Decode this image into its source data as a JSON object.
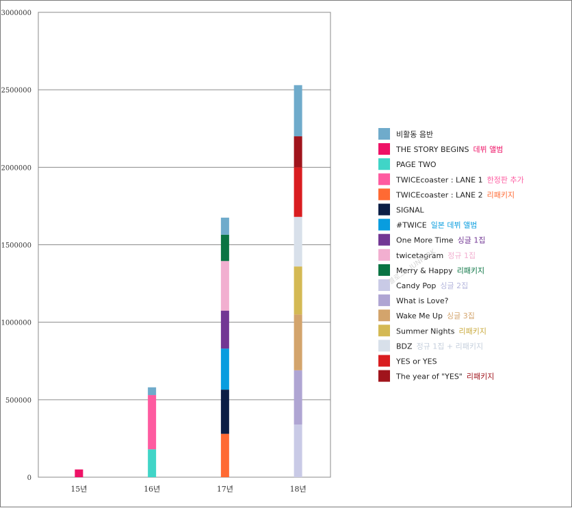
{
  "chart_data": {
    "type": "bar",
    "stacked": true,
    "categories": [
      "15년",
      "16년",
      "17년",
      "18년"
    ],
    "ylim": [
      0,
      3000000
    ],
    "yticks": [
      0,
      500000,
      1000000,
      1500000,
      2000000,
      2500000,
      3000000
    ],
    "grid": true,
    "legend_position": "right",
    "title": "",
    "xlabel": "",
    "ylabel": "",
    "series": [
      {
        "name": "THE STORY BEGINS",
        "note": "데뷔 앨범",
        "color": "#ee1266",
        "values": [
          50000,
          0,
          0,
          0
        ]
      },
      {
        "name": "PAGE TWO",
        "note": "",
        "color": "#40d5c7",
        "values": [
          0,
          180000,
          0,
          0
        ]
      },
      {
        "name": "TWICEcoaster : LANE 1",
        "note": "한정판 추가",
        "color": "#fe5ba0",
        "values": [
          0,
          350000,
          0,
          0
        ]
      },
      {
        "name": "TWICEcoaster : LANE 2",
        "note": "리패키지",
        "color": "#ff6a33",
        "values": [
          0,
          0,
          280000,
          0
        ]
      },
      {
        "name": "SIGNAL",
        "note": "",
        "color": "#0c1e45",
        "values": [
          0,
          0,
          285000,
          0
        ]
      },
      {
        "name": "#TWICE",
        "note": "일본 데뷔 앨범",
        "color": "#089ddf",
        "values": [
          0,
          0,
          265000,
          0
        ]
      },
      {
        "name": "One More Time",
        "note": "싱글 1집",
        "color": "#723794",
        "values": [
          0,
          0,
          245000,
          0
        ]
      },
      {
        "name": "twicetagram",
        "note": "정규 1집",
        "color": "#f2afd0",
        "values": [
          0,
          0,
          320000,
          0
        ]
      },
      {
        "name": "Merry & Happy",
        "note": "리패키지",
        "color": "#0a7443",
        "values": [
          0,
          0,
          170000,
          0
        ]
      },
      {
        "name": "Candy Pop",
        "note": "싱글 2집",
        "color": "#c9cae6",
        "values": [
          0,
          0,
          0,
          340000
        ]
      },
      {
        "name": "What is Love?",
        "note": "",
        "color": "#afa5d3",
        "values": [
          0,
          0,
          0,
          350000
        ]
      },
      {
        "name": "Wake Me Up",
        "note": "싱글 3집",
        "color": "#d3a46c",
        "values": [
          0,
          0,
          0,
          360000
        ]
      },
      {
        "name": "Summer Nights",
        "note": "리패키지",
        "color": "#d4b954",
        "values": [
          0,
          0,
          0,
          310000
        ]
      },
      {
        "name": "BDZ",
        "note": "정규 1집 + 리패키지",
        "color": "#d8e0ea",
        "values": [
          0,
          0,
          0,
          320000
        ]
      },
      {
        "name": "YES or YES",
        "note": "",
        "color": "#d91d20",
        "values": [
          0,
          0,
          0,
          320000
        ]
      },
      {
        "name": "The year of \"YES\"",
        "note": "리패키지",
        "color": "#a0141c",
        "values": [
          0,
          0,
          0,
          200000
        ]
      },
      {
        "name": "비활동 음반",
        "note": "",
        "color": "#6fabcb",
        "values": [
          0,
          0,
          50000,
          0
        ]
      }
    ],
    "top_series": {
      "name": "비활동 음반",
      "color": "#6fabcb",
      "values": [
        0,
        50000,
        110000,
        330000
      ]
    },
    "legend": [
      {
        "name": "비활동 음반",
        "note": "",
        "color": "#6fabcb",
        "note_color": "#6fabcb"
      },
      {
        "name": "THE STORY BEGINS",
        "note": "데뷔 앨범",
        "color": "#ee1266",
        "note_color": "#ee1266"
      },
      {
        "name": "PAGE TWO",
        "note": "",
        "color": "#40d5c7",
        "note_color": "#40d5c7"
      },
      {
        "name": "TWICEcoaster : LANE 1",
        "note": "한정판 추가",
        "color": "#fe5ba0",
        "note_color": "#fe5ba0"
      },
      {
        "name": "TWICEcoaster : LANE 2",
        "note": "리패키지",
        "color": "#ff6a33",
        "note_color": "#ff6a33"
      },
      {
        "name": "SIGNAL",
        "note": "",
        "color": "#0c1e45",
        "note_color": "#0c1e45"
      },
      {
        "name": "#TWICE",
        "note": "일본 데뷔 앨범",
        "color": "#089ddf",
        "note_color": "#089ddf"
      },
      {
        "name": "One More Time",
        "note": "싱글 1집",
        "color": "#723794",
        "note_color": "#723794"
      },
      {
        "name": "twicetagram",
        "note": "정규 1집",
        "color": "#f2afd0",
        "note_color": "#f2afd0"
      },
      {
        "name": "Merry & Happy",
        "note": "리패키지",
        "color": "#0a7443",
        "note_color": "#0a7443"
      },
      {
        "name": "Candy Pop",
        "note": "싱글 2집",
        "color": "#c9cae6",
        "note_color": "#b4b6dc"
      },
      {
        "name": "What is Love?",
        "note": "",
        "color": "#afa5d3",
        "note_color": "#afa5d3"
      },
      {
        "name": "Wake Me Up",
        "note": "싱글 3집",
        "color": "#d3a46c",
        "note_color": "#d3a46c"
      },
      {
        "name": "Summer Nights",
        "note": "리패키지",
        "color": "#d4b954",
        "note_color": "#c9a93b"
      },
      {
        "name": "BDZ",
        "note": "정규 1집 + 리패키지",
        "color": "#d8e0ea",
        "note_color": "#c5cfdc"
      },
      {
        "name": "YES or YES",
        "note": "",
        "color": "#d91d20",
        "note_color": "#d91d20"
      },
      {
        "name": "The year of \"YES\"",
        "note": "리패키지",
        "color": "#a0141c",
        "note_color": "#a0141c"
      }
    ]
  },
  "watermark": "블로그 : JUNPARK"
}
